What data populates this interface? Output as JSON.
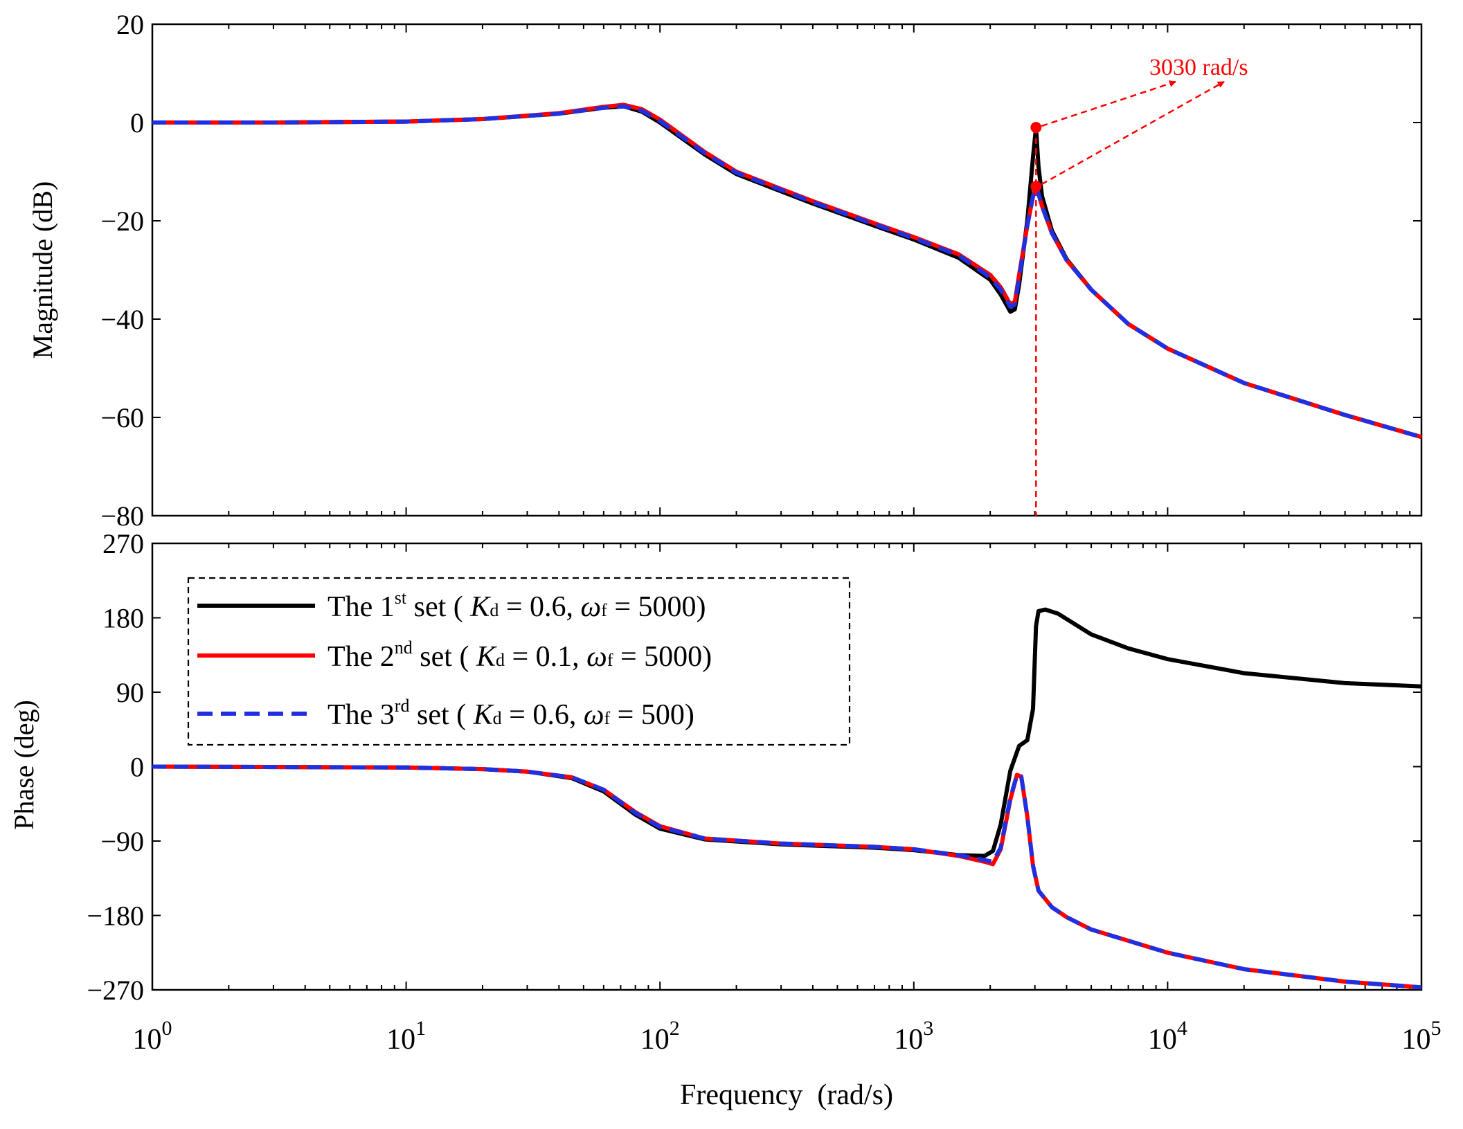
{
  "chart_data": [
    {
      "type": "line",
      "panel": "magnitude",
      "ylabel": "Magnitude (dB)",
      "xscale": "log",
      "xlim": [
        1,
        100000
      ],
      "ylim": [
        -80,
        20
      ],
      "yticks": [
        "20",
        "0",
        "−20",
        "−40",
        "−60",
        "−80"
      ],
      "yticks_values": [
        20,
        0,
        -20,
        -40,
        -60,
        -80
      ],
      "grid": false,
      "annotation": {
        "text": "3030 rad/s",
        "x": 3030,
        "marker_values_db": [
          -1,
          -13
        ],
        "color": "#ff0000"
      },
      "series": [
        {
          "name": "The 1st set",
          "color": "#000000",
          "style": "solid",
          "x": [
            1,
            3,
            10,
            20,
            40,
            60,
            72,
            85,
            100,
            150,
            200,
            400,
            700,
            1000,
            1500,
            2000,
            2200,
            2400,
            2500,
            2600,
            2800,
            2950,
            3030,
            3100,
            3200,
            3500,
            4000,
            5000,
            7000,
            10000,
            20000,
            50000,
            100000
          ],
          "y": [
            0,
            0,
            0.2,
            0.7,
            1.8,
            3.0,
            3.3,
            2.2,
            0.0,
            -6.5,
            -10.5,
            -16.5,
            -21.0,
            -23.8,
            -27.5,
            -32,
            -35,
            -38.5,
            -38,
            -33,
            -20,
            -7,
            -1,
            -9,
            -15,
            -22,
            -27.8,
            -34,
            -41,
            -46,
            -53,
            -59.5,
            -64
          ]
        },
        {
          "name": "The 2nd set",
          "color": "#ff0000",
          "style": "solid",
          "x": [
            1,
            3,
            10,
            20,
            40,
            60,
            72,
            85,
            100,
            150,
            200,
            400,
            700,
            1000,
            1500,
            2000,
            2200,
            2400,
            2500,
            2600,
            2800,
            2950,
            3030,
            3100,
            3200,
            3500,
            4000,
            5000,
            7000,
            10000,
            20000,
            50000,
            100000
          ],
          "y": [
            0,
            0,
            0.2,
            0.7,
            1.9,
            3.2,
            3.6,
            2.7,
            0.6,
            -6.0,
            -10.0,
            -16.0,
            -20.5,
            -23.3,
            -26.8,
            -31,
            -33.5,
            -37,
            -36.5,
            -31,
            -21,
            -15,
            -13,
            -14.5,
            -17,
            -22.5,
            -28,
            -34,
            -41,
            -46,
            -53,
            -59.5,
            -64
          ]
        },
        {
          "name": "The 3rd set",
          "color": "#2030e0",
          "style": "dashed",
          "x": [
            1,
            3,
            10,
            20,
            40,
            60,
            72,
            85,
            100,
            150,
            200,
            400,
            700,
            1000,
            1500,
            2000,
            2200,
            2400,
            2500,
            2600,
            2800,
            2950,
            3030,
            3100,
            3200,
            3500,
            4000,
            5000,
            7000,
            10000,
            20000,
            50000,
            100000
          ],
          "y": [
            0,
            0,
            0.2,
            0.7,
            1.8,
            3.0,
            3.3,
            2.4,
            0.3,
            -6.2,
            -10.2,
            -16.2,
            -20.7,
            -23.5,
            -27.0,
            -31.5,
            -34,
            -37.5,
            -37,
            -31.5,
            -21,
            -15,
            -13,
            -14.5,
            -17,
            -22.5,
            -28,
            -34,
            -41,
            -46,
            -53,
            -59.5,
            -64
          ]
        }
      ]
    },
    {
      "type": "line",
      "panel": "phase",
      "ylabel": "Phase (deg)",
      "xlabel": "Frequency  (rad/s)",
      "xscale": "log",
      "xlim": [
        1,
        100000
      ],
      "ylim": [
        -270,
        270
      ],
      "yticks": [
        "270",
        "180",
        "90",
        "0",
        "−90",
        "−180",
        "−270"
      ],
      "yticks_values": [
        270,
        180,
        90,
        0,
        -90,
        -180,
        -270
      ],
      "xticks_values": [
        1,
        10,
        100,
        1000,
        10000,
        100000
      ],
      "xtick_labels": [
        {
          "base": "10",
          "exp": "0"
        },
        {
          "base": "10",
          "exp": "1"
        },
        {
          "base": "10",
          "exp": "2"
        },
        {
          "base": "10",
          "exp": "3"
        },
        {
          "base": "10",
          "exp": "4"
        },
        {
          "base": "10",
          "exp": "5"
        }
      ],
      "grid": false,
      "legend": {
        "placement": "top-left",
        "border": "dashed",
        "entries": [
          {
            "prefix": "The 1",
            "sup": "st",
            "mid": " set ( ",
            "k": "K",
            "kd": "d",
            "keq": " = 0.6, ",
            "w": "ω",
            "wf": "f",
            "tail": " = 5000)"
          },
          {
            "prefix": "The 2",
            "sup": "nd",
            "mid": " set ( ",
            "k": "K",
            "kd": "d",
            "keq": " = 0.1, ",
            "w": "ω",
            "wf": "f",
            "tail": " = 5000)"
          },
          {
            "prefix": "The 3",
            "sup": "rd",
            "mid": " set ( ",
            "k": "K",
            "kd": "d",
            "keq": " = 0.6, ",
            "w": "ω",
            "wf": "f",
            "tail": " = 500)"
          }
        ]
      },
      "series": [
        {
          "name": "The 1st set",
          "color": "#000000",
          "style": "solid",
          "x": [
            1,
            10,
            20,
            30,
            45,
            60,
            80,
            100,
            150,
            300,
            700,
            1000,
            1500,
            1900,
            2050,
            2200,
            2400,
            2600,
            2800,
            2950,
            3030,
            3100,
            3300,
            3700,
            5000,
            7000,
            10000,
            20000,
            50000,
            100000
          ],
          "y": [
            0,
            -1,
            -3,
            -6,
            -14,
            -30,
            -58,
            -75,
            -88,
            -94,
            -98,
            -101,
            -107,
            -108,
            -102,
            -70,
            -5,
            25,
            32,
            70,
            170,
            188,
            190,
            185,
            160,
            143,
            130,
            113,
            101,
            97
          ]
        },
        {
          "name": "The 2nd set",
          "color": "#ff0000",
          "style": "solid",
          "x": [
            1,
            10,
            20,
            30,
            45,
            60,
            80,
            100,
            150,
            300,
            700,
            1000,
            1500,
            1900,
            2050,
            2200,
            2400,
            2550,
            2650,
            2800,
            2950,
            3100,
            3500,
            4000,
            5000,
            10000,
            20000,
            50000,
            100000
          ],
          "y": [
            0,
            -1,
            -3,
            -6,
            -13,
            -28,
            -55,
            -72,
            -87,
            -93,
            -97,
            -100,
            -108,
            -115,
            -118,
            -100,
            -40,
            -10,
            -12,
            -60,
            -120,
            -150,
            -170,
            -182,
            -197,
            -225,
            -245,
            -260,
            -267
          ]
        },
        {
          "name": "The 3rd set",
          "color": "#2030e0",
          "style": "dashed",
          "x": [
            1,
            10,
            20,
            30,
            45,
            60,
            80,
            100,
            150,
            300,
            700,
            1000,
            1500,
            1900,
            2050,
            2200,
            2400,
            2550,
            2650,
            2800,
            2950,
            3100,
            3500,
            4000,
            5000,
            10000,
            20000,
            50000,
            100000
          ],
          "y": [
            0,
            -1,
            -3,
            -6,
            -13,
            -28,
            -56,
            -73,
            -87,
            -93,
            -97,
            -100,
            -107,
            -113,
            -115,
            -98,
            -38,
            -10,
            -12,
            -60,
            -120,
            -150,
            -170,
            -182,
            -197,
            -225,
            -245,
            -260,
            -267
          ]
        }
      ]
    }
  ]
}
